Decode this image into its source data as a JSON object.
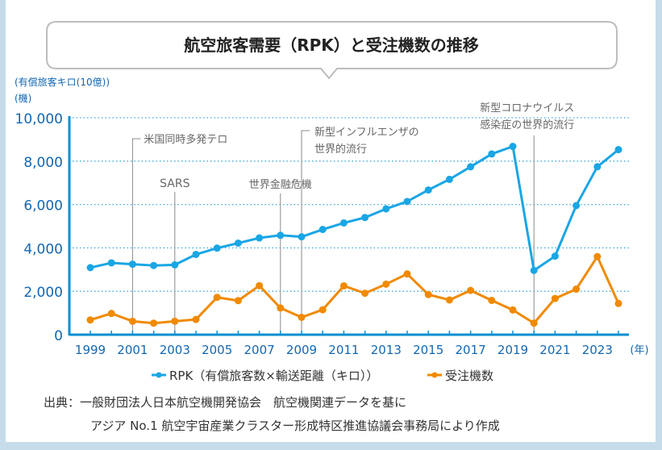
{
  "chart_data": {
    "type": "line",
    "title": "航空旅客需要（RPK）と受注機数の推移",
    "ylabel": "(有償旅客キロ(10億))",
    "ylabel2": "(機)",
    "xlabel": "(年)",
    "ylim": [
      0,
      10000
    ],
    "yticks": [
      "0",
      "2,000",
      "4,000",
      "6,000",
      "8,000",
      "10,000"
    ],
    "ytick_values": [
      0,
      2000,
      4000,
      6000,
      8000,
      10000
    ],
    "x": [
      1999,
      2000,
      2001,
      2002,
      2003,
      2004,
      2005,
      2006,
      2007,
      2008,
      2009,
      2010,
      2011,
      2012,
      2013,
      2014,
      2015,
      2016,
      2017,
      2018,
      2019,
      2020,
      2021,
      2022,
      2023,
      2024
    ],
    "xtick_labels": [
      "1999",
      "2001",
      "2003",
      "2005",
      "2007",
      "2009",
      "2011",
      "2013",
      "2015",
      "2017",
      "2019",
      "2021",
      "2023"
    ],
    "grid": true,
    "legend_position": "bottom",
    "series": [
      {
        "name": "RPK（有償旅客数×輸送距離（キロ））",
        "color": "#1aa6e4",
        "values": [
          3090,
          3310,
          3250,
          3190,
          3220,
          3700,
          3990,
          4220,
          4460,
          4580,
          4510,
          4850,
          5150,
          5400,
          5800,
          6140,
          6670,
          7160,
          7740,
          8330,
          8680,
          2960,
          3620,
          5950,
          7740,
          8530
        ]
      },
      {
        "name": "受注機数",
        "color": "#f08a00",
        "values": [
          680,
          980,
          620,
          530,
          620,
          700,
          1720,
          1570,
          2260,
          1230,
          800,
          1150,
          2250,
          1910,
          2330,
          2800,
          1850,
          1600,
          2040,
          1580,
          1140,
          530,
          1670,
          2100,
          3600,
          1440
        ]
      }
    ],
    "annotations": [
      {
        "year": 2001,
        "lines": [
          "米国同時多発テロ"
        ]
      },
      {
        "year": 2003,
        "lines": [
          "SARS"
        ]
      },
      {
        "year": 2008,
        "lines": [
          "世界金融危機"
        ]
      },
      {
        "year": 2009,
        "lines": [
          "新型インフルエンザの",
          "世界的流行"
        ]
      },
      {
        "year": 2020,
        "lines": [
          "新型コロナウイルス",
          "感染症の世界的流行"
        ]
      }
    ]
  },
  "source": {
    "line1": "出典：一般財団法人日本航空機開発協会　航空機関連データを基に",
    "line2": "アジア No.1 航空宇宙産業クラスター形成特区推進協議会事務局により作成"
  },
  "colors": {
    "axis": "#0a8fd0",
    "tick_text": "#1467b0",
    "grid": "#3ba7dc",
    "annotation": "#8a8a8a"
  }
}
